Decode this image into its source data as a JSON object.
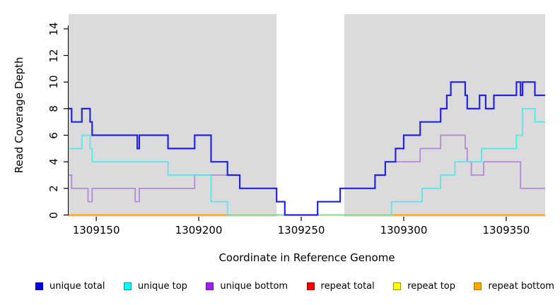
{
  "chart_data": {
    "type": "line",
    "step": true,
    "title": "",
    "xlabel": "Coordinate in Reference Genome",
    "ylabel": "Read Coverage Depth",
    "xlim": [
      1309136.5,
      1309369
    ],
    "ylim": [
      0,
      15.2
    ],
    "xticks": [
      1309150,
      1309200,
      1309250,
      1309300,
      1309350
    ],
    "yticks": [
      0,
      2,
      4,
      6,
      8,
      10,
      12,
      14
    ],
    "grid": false,
    "plot_bg": "#dbdbdb",
    "page_bg": "#ffffff",
    "no_data_band": {
      "x1": 1309238,
      "x2": 1309271,
      "color": "#ffffff"
    },
    "overlap_segment": {
      "x1": 1309214,
      "x2": 1309294,
      "y": 0,
      "color": "#8cd48c",
      "note": "unique-top at depth 0 overlapping repeat-bottom renders light green"
    },
    "legend_position": "bottom",
    "series": [
      {
        "name": "repeat total",
        "line_color": "#ff0000",
        "values": [
          [
            1309136.5,
            0
          ]
        ]
      },
      {
        "name": "repeat top",
        "line_color": "#ffff00",
        "values": [
          [
            1309136.5,
            0
          ]
        ]
      },
      {
        "name": "repeat bottom",
        "line_color": "#ffa500",
        "values": [
          [
            1309136.5,
            0
          ]
        ]
      },
      {
        "name": "unique bottom",
        "line_color": "#b584da",
        "values": [
          [
            1309136.5,
            3
          ],
          [
            1309138,
            2
          ],
          [
            1309146,
            1
          ],
          [
            1309148,
            2
          ],
          [
            1309169,
            1
          ],
          [
            1309171,
            2
          ],
          [
            1309198,
            3
          ],
          [
            1309220,
            2
          ],
          [
            1309238,
            1
          ],
          [
            1309242,
            0
          ],
          [
            1309258,
            1
          ],
          [
            1309269,
            2
          ],
          [
            1309286,
            3
          ],
          [
            1309291,
            4
          ],
          [
            1309308,
            5
          ],
          [
            1309318,
            6
          ],
          [
            1309330,
            5
          ],
          [
            1309331,
            4
          ],
          [
            1309333,
            3
          ],
          [
            1309339,
            4
          ],
          [
            1309357,
            2
          ]
        ]
      },
      {
        "name": "unique top",
        "line_color": "#45eded",
        "values": [
          [
            1309136.5,
            5
          ],
          [
            1309143,
            6
          ],
          [
            1309147,
            5
          ],
          [
            1309148,
            4
          ],
          [
            1309185,
            3
          ],
          [
            1309206,
            1
          ],
          [
            1309214,
            0
          ],
          [
            1309294,
            1
          ],
          [
            1309309,
            2
          ],
          [
            1309318,
            3
          ],
          [
            1309325,
            4
          ],
          [
            1309338,
            5
          ],
          [
            1309355,
            6
          ],
          [
            1309358,
            8
          ],
          [
            1309364,
            7
          ]
        ]
      },
      {
        "name": "unique total",
        "line_color": "#2323e6",
        "values": [
          [
            1309136.5,
            8
          ],
          [
            1309138,
            7
          ],
          [
            1309143,
            8
          ],
          [
            1309147,
            7
          ],
          [
            1309148,
            6
          ],
          [
            1309170,
            5
          ],
          [
            1309171,
            6
          ],
          [
            1309185,
            5
          ],
          [
            1309198,
            6
          ],
          [
            1309206,
            4
          ],
          [
            1309214,
            3
          ],
          [
            1309220,
            2
          ],
          [
            1309238,
            1
          ],
          [
            1309242,
            0
          ],
          [
            1309258,
            1
          ],
          [
            1309269,
            2
          ],
          [
            1309286,
            3
          ],
          [
            1309291,
            4
          ],
          [
            1309296,
            5
          ],
          [
            1309300,
            6
          ],
          [
            1309308,
            7
          ],
          [
            1309318,
            8
          ],
          [
            1309321,
            9
          ],
          [
            1309323,
            10
          ],
          [
            1309330,
            9
          ],
          [
            1309331,
            8
          ],
          [
            1309337,
            9
          ],
          [
            1309340,
            8
          ],
          [
            1309344,
            9
          ],
          [
            1309355,
            10
          ],
          [
            1309357,
            9
          ],
          [
            1309358,
            10
          ],
          [
            1309364,
            9
          ]
        ]
      }
    ],
    "legend": [
      {
        "label": "unique total",
        "fill": "#0000ee",
        "border": "#000099"
      },
      {
        "label": "unique top",
        "fill": "#00ffff",
        "border": "#009999"
      },
      {
        "label": "unique bottom",
        "fill": "#a020f0",
        "border": "#6a0dad"
      },
      {
        "label": "repeat total",
        "fill": "#ff0000",
        "border": "#990000"
      },
      {
        "label": "repeat top",
        "fill": "#ffff00",
        "border": "#999900"
      },
      {
        "label": "repeat bottom",
        "fill": "#ffa500",
        "border": "#b37400"
      }
    ]
  }
}
